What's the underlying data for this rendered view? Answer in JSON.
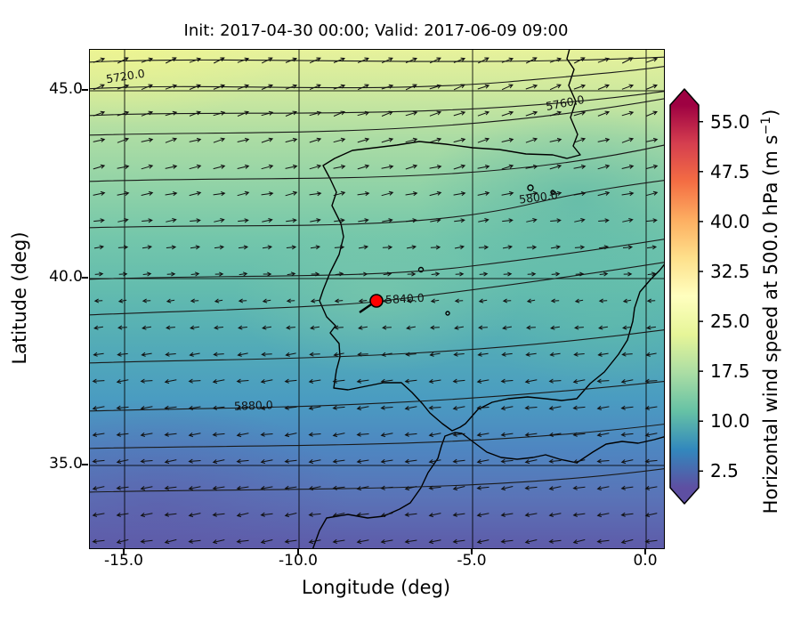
{
  "figure": {
    "title": "Init: 2017-04-30 00:00; Valid: 2017-06-09 09:00",
    "background": "#ffffff"
  },
  "axes": {
    "xlabel": "Longitude (deg)",
    "ylabel": "Latitude (deg)",
    "xtick_labels": [
      "-15.0",
      "-10.0",
      "-5.0",
      "0.0"
    ],
    "ytick_labels": [
      "45.0",
      "40.0",
      "35.0"
    ]
  },
  "contour_labels": [
    "5720.0",
    "5760.0",
    "5800.0",
    "5840.0",
    "5880.0"
  ],
  "colorbar": {
    "label_prefix": "Horizontal wind speed at 500.0 hPa (m s",
    "label_sup": "−1",
    "label_suffix": ")",
    "tick_labels": [
      "55.0",
      "47.5",
      "40.0",
      "32.5",
      "25.0",
      "17.5",
      "10.0",
      "2.5"
    ],
    "colors_low_to_high": [
      "#5e4fa2",
      "#3288bd",
      "#66c2a5",
      "#abdda4",
      "#e6f598",
      "#ffffbf",
      "#fee08b",
      "#fdae61",
      "#f46d43",
      "#d53e4f",
      "#9e0142"
    ]
  },
  "marker": {
    "fill": "#ff0000",
    "edge": "#000000"
  },
  "wind": {
    "spacing_x": 27,
    "spacing_y": 30,
    "arrow_len": 13,
    "westerly_above_lat": 39.7,
    "color": "#111111"
  },
  "chart_data": {
    "type": "heatmap",
    "title": "Init: 2017-04-30 00:00; Valid: 2017-06-09 09:00",
    "xlabel": "Longitude (deg)",
    "ylabel": "Latitude (deg)",
    "xlim": [
      -16.0,
      0.5
    ],
    "ylim": [
      32.7,
      46.2
    ],
    "xticks": [
      -15.0,
      -10.0,
      -5.0,
      0.0
    ],
    "yticks": [
      35.0,
      40.0,
      45.0
    ],
    "colorbar": {
      "label": "Horizontal wind speed at 500.0 hPa (m s^-1)",
      "ticks": [
        2.5,
        10.0,
        17.5,
        25.0,
        32.5,
        40.0,
        47.5,
        55.0
      ],
      "range": [
        0,
        57.5
      ],
      "colormap": "Spectral_r",
      "extend": "both"
    },
    "wind_speed_by_latitude": {
      "lat": [
        46,
        45,
        44,
        43,
        42,
        41,
        40,
        39,
        38,
        37,
        36,
        35,
        34,
        33
      ],
      "speed_ms": [
        26,
        24,
        21,
        19,
        17,
        15,
        13,
        11,
        10,
        9,
        8,
        6,
        5,
        4
      ]
    },
    "wind_direction": {
      "north_of_39.5N": "westerly (arrows point east, tilting northeast near top-left)",
      "south_of_39.5N": "easterly (arrows point west with slight southward tilt)"
    },
    "geopotential_height_contours_m": [
      5720,
      5760,
      5800,
      5840,
      5880
    ],
    "geopotential_gradient": "height increases from ~5700 m in the north to ~5900 m in the south",
    "marker_location": {
      "lon": -7.8,
      "lat": 39.4
    },
    "region": "Iberian Peninsula, Bay of Biscay, northwest Africa, western Mediterranean"
  }
}
